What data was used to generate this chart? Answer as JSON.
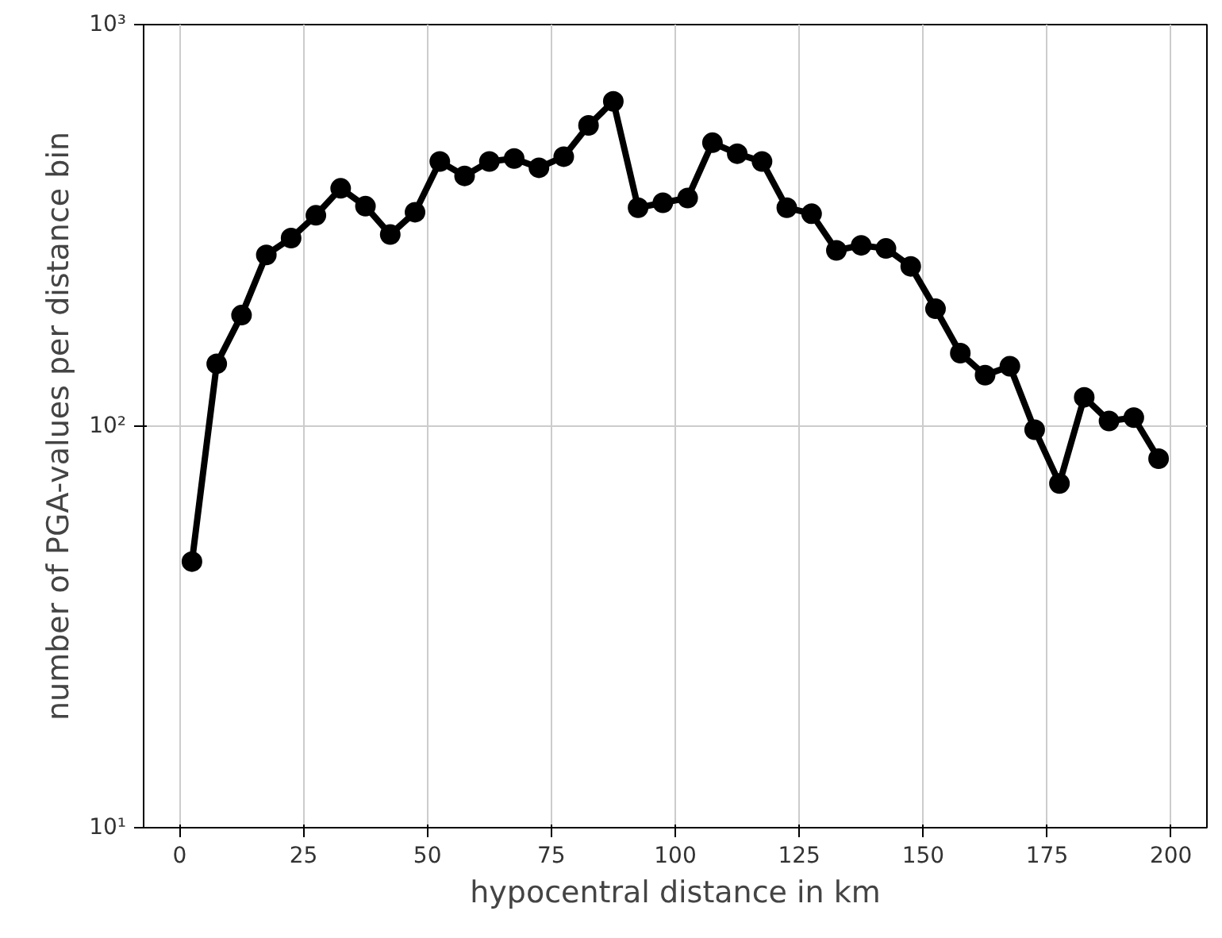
{
  "chart_data": {
    "type": "line",
    "xlabel": "hypocentral distance in km",
    "ylabel": "number of PGA-values per distance bin",
    "x": [
      2.5,
      7.5,
      12.5,
      17.5,
      22.5,
      27.5,
      32.5,
      37.5,
      42.5,
      47.5,
      52.5,
      57.5,
      62.5,
      67.5,
      72.5,
      77.5,
      82.5,
      87.5,
      92.5,
      97.5,
      102.5,
      107.5,
      112.5,
      117.5,
      122.5,
      127.5,
      132.5,
      137.5,
      142.5,
      147.5,
      152.5,
      157.5,
      162.5,
      167.5,
      172.5,
      177.5,
      182.5,
      187.5,
      192.5,
      197.5
    ],
    "series": [
      {
        "color": "#000000",
        "values": [
          46,
          143,
          189,
          267,
          294,
          335,
          391,
          353,
          300,
          341,
          456,
          420,
          456,
          464,
          440,
          469,
          561,
          644,
          350,
          360,
          370,
          508,
          477,
          456,
          350,
          338,
          274,
          282,
          277,
          250,
          196,
          152,
          134,
          141,
          98,
          72,
          118,
          103,
          105,
          83
        ]
      }
    ],
    "xlim": [
      -7.25,
      207.25
    ],
    "xticks": [
      0,
      25,
      50,
      75,
      100,
      125,
      150,
      175,
      200
    ],
    "ylim": [
      10,
      1000
    ],
    "yticks": [
      {
        "value": 10,
        "label": "10¹"
      },
      {
        "value": 100,
        "label": "10²"
      },
      {
        "value": 1000,
        "label": "10³"
      }
    ],
    "log": "y",
    "grid": true,
    "marker": "circle",
    "line_style": "solid"
  }
}
